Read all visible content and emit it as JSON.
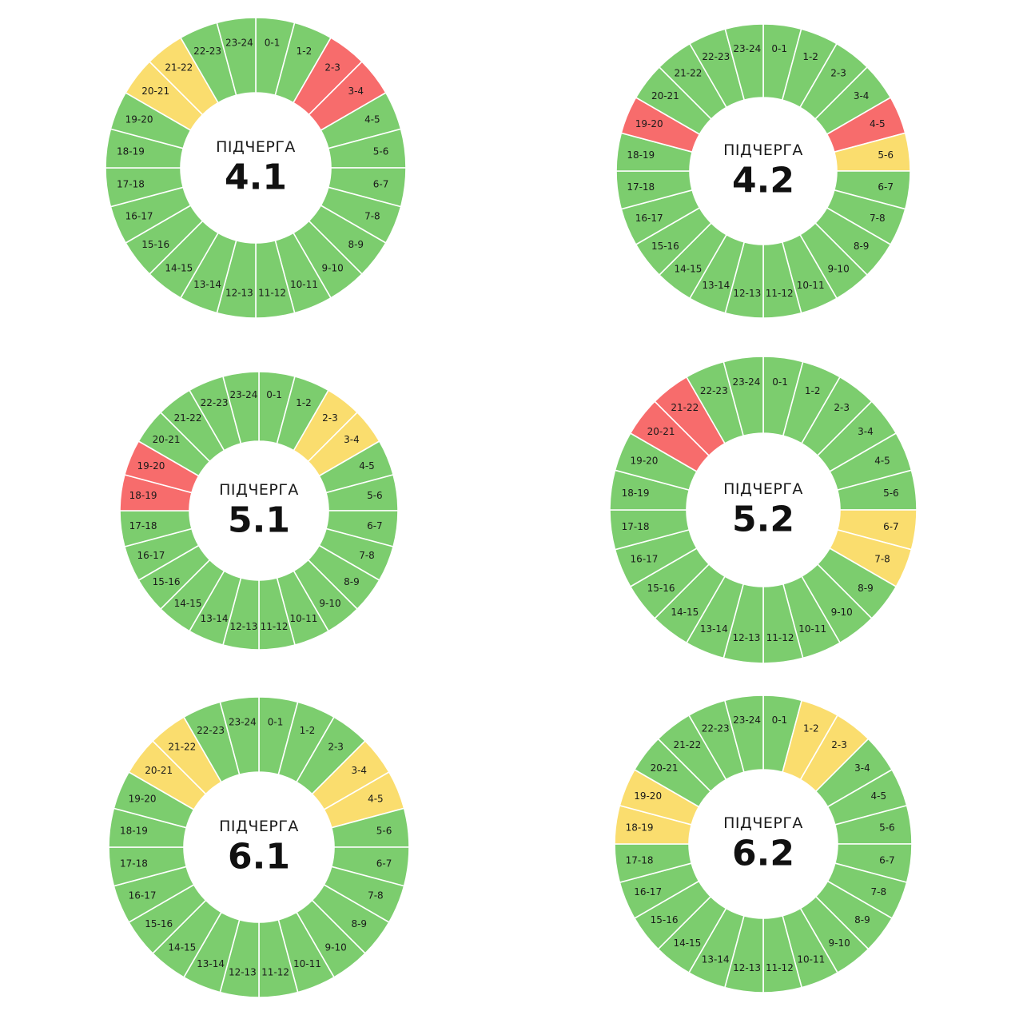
{
  "colors": {
    "on": "#7ccd6e",
    "maybe": "#fadd6e",
    "off": "#f76c6c",
    "divider": "#ffffff",
    "background": "#ffffff"
  },
  "hour_labels": [
    "0-1",
    "1-2",
    "2-3",
    "3-4",
    "4-5",
    "5-6",
    "6-7",
    "7-8",
    "8-9",
    "9-10",
    "10-11",
    "11-12",
    "12-13",
    "13-14",
    "14-15",
    "15-16",
    "16-17",
    "17-18",
    "18-19",
    "19-20",
    "20-21",
    "21-22",
    "22-23",
    "23-24"
  ],
  "chart_data": [
    {
      "type": "donut",
      "title": "ПІДЧЕРГА",
      "queue": "4.1",
      "status": [
        "on",
        "on",
        "off",
        "off",
        "on",
        "on",
        "on",
        "on",
        "on",
        "on",
        "on",
        "on",
        "on",
        "on",
        "on",
        "on",
        "on",
        "on",
        "on",
        "on",
        "maybe",
        "maybe",
        "on",
        "on"
      ]
    },
    {
      "type": "donut",
      "title": "ПІДЧЕРГА",
      "queue": "4.2",
      "status": [
        "on",
        "on",
        "on",
        "on",
        "off",
        "maybe",
        "on",
        "on",
        "on",
        "on",
        "on",
        "on",
        "on",
        "on",
        "on",
        "on",
        "on",
        "on",
        "on",
        "off",
        "on",
        "on",
        "on",
        "on"
      ]
    },
    {
      "type": "donut",
      "title": "ПІДЧЕРГА",
      "queue": "5.1",
      "status": [
        "on",
        "on",
        "maybe",
        "maybe",
        "on",
        "on",
        "on",
        "on",
        "on",
        "on",
        "on",
        "on",
        "on",
        "on",
        "on",
        "on",
        "on",
        "on",
        "off",
        "off",
        "on",
        "on",
        "on",
        "on"
      ]
    },
    {
      "type": "donut",
      "title": "ПІДЧЕРГА",
      "queue": "5.2",
      "status": [
        "on",
        "on",
        "on",
        "on",
        "on",
        "on",
        "maybe",
        "maybe",
        "on",
        "on",
        "on",
        "on",
        "on",
        "on",
        "on",
        "on",
        "on",
        "on",
        "on",
        "on",
        "off",
        "off",
        "on",
        "on"
      ]
    },
    {
      "type": "donut",
      "title": "ПІДЧЕРГА",
      "queue": "6.1",
      "status": [
        "on",
        "on",
        "on",
        "maybe",
        "maybe",
        "on",
        "on",
        "on",
        "on",
        "on",
        "on",
        "on",
        "on",
        "on",
        "on",
        "on",
        "on",
        "on",
        "on",
        "on",
        "maybe",
        "maybe",
        "on",
        "on"
      ]
    },
    {
      "type": "donut",
      "title": "ПІДЧЕРГА",
      "queue": "6.2",
      "status": [
        "on",
        "maybe",
        "maybe",
        "on",
        "on",
        "on",
        "on",
        "on",
        "on",
        "on",
        "on",
        "on",
        "on",
        "on",
        "on",
        "on",
        "on",
        "on",
        "maybe",
        "maybe",
        "on",
        "on",
        "on",
        "on"
      ]
    }
  ]
}
